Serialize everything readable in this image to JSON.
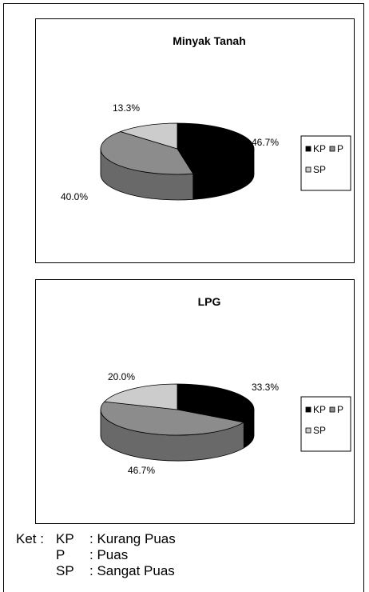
{
  "chart_data": [
    {
      "type": "pie",
      "title": "Minyak Tanah",
      "categories": [
        "KP",
        "P",
        "SP"
      ],
      "values": [
        46.7,
        40.0,
        13.3
      ],
      "labels": [
        "46.7%",
        "40.0%",
        "13.3%"
      ],
      "legend": "right"
    },
    {
      "type": "pie",
      "title": "LPG",
      "categories": [
        "KP",
        "P",
        "SP"
      ],
      "values": [
        33.3,
        46.7,
        20.0
      ],
      "labels": [
        "33.3%",
        "46.7%",
        "20.0%"
      ],
      "legend": "right"
    }
  ],
  "colors": {
    "KP": "#000000",
    "P": "#8c8c8c",
    "SP": "#cccccc"
  },
  "ket": {
    "lead": "Ket :",
    "items": [
      {
        "abbr": "KP",
        "def": ": Kurang Puas"
      },
      {
        "abbr": "P",
        "def": ": Puas"
      },
      {
        "abbr": "SP",
        "def": ": Sangat Puas"
      }
    ]
  }
}
